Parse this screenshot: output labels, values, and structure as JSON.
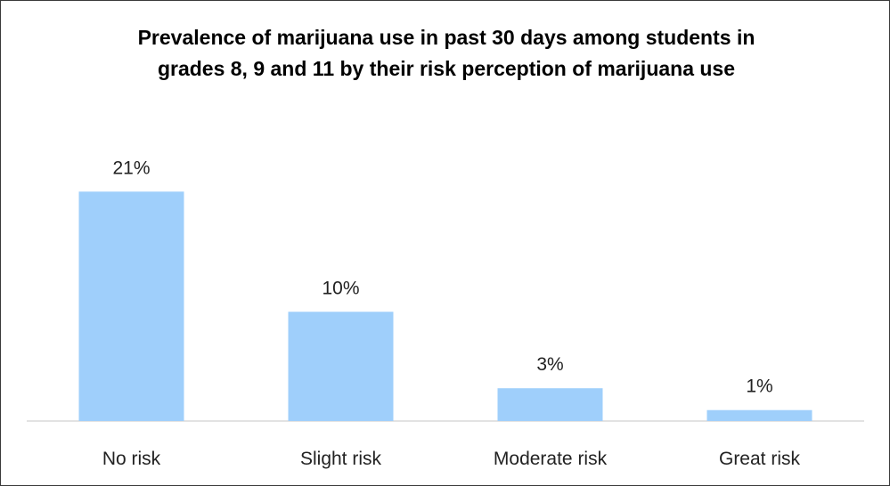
{
  "chart_data": {
    "type": "bar",
    "title": "Prevalence of marijuana use in past 30 days among students in grades 8, 9 and 11 by their risk perception of marijuana use",
    "categories": [
      "No risk",
      "Slight risk",
      "Moderate risk",
      "Great risk"
    ],
    "values": [
      21,
      10,
      3,
      1
    ],
    "data_labels": [
      "21%",
      "10%",
      "3%",
      "1%"
    ],
    "ylim": [
      0,
      22
    ],
    "grid": false,
    "legend": "none",
    "bar_color": "#9fcffb",
    "axis_color": "#d9d9d9"
  }
}
